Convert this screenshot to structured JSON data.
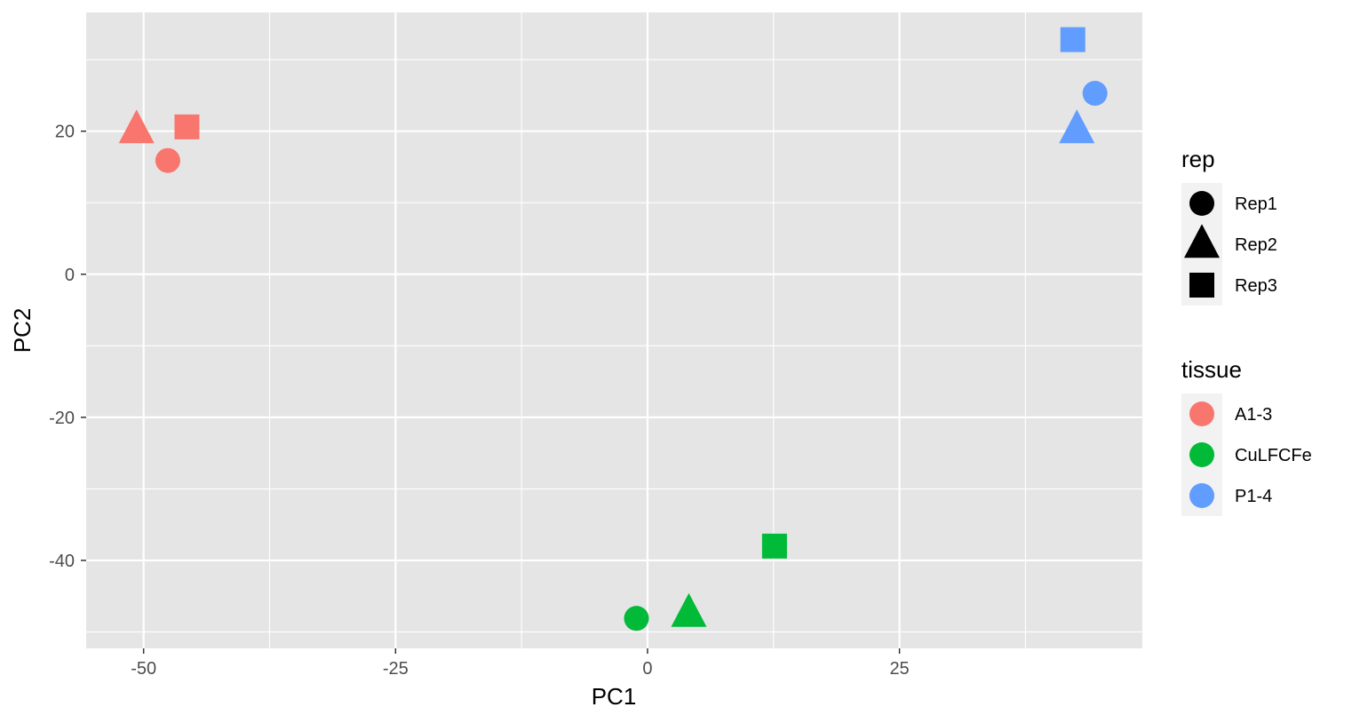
{
  "chart_data": {
    "type": "scatter",
    "xlabel": "PC1",
    "ylabel": "PC2",
    "xlim": [
      -55.7,
      49.1
    ],
    "ylim": [
      -52.3,
      36.6
    ],
    "x_ticks": [
      -50,
      -25,
      0,
      25
    ],
    "x_tick_labels": [
      "-50",
      "-25",
      "0",
      "25"
    ],
    "y_ticks": [
      -40,
      -20,
      0,
      20
    ],
    "y_tick_labels": [
      "-40",
      "-20",
      "0",
      "20"
    ],
    "background": "#e5e5e5",
    "grid": true,
    "points": [
      {
        "x": -47.6,
        "y": 15.9,
        "rep": "Rep1",
        "tissue": "A1-3"
      },
      {
        "x": -50.7,
        "y": 20.2,
        "rep": "Rep2",
        "tissue": "A1-3"
      },
      {
        "x": -45.7,
        "y": 20.6,
        "rep": "Rep3",
        "tissue": "A1-3"
      },
      {
        "x": -1.1,
        "y": -48.1,
        "rep": "Rep1",
        "tissue": "CuLFCFe"
      },
      {
        "x": 4.1,
        "y": -47.4,
        "rep": "Rep2",
        "tissue": "CuLFCFe"
      },
      {
        "x": 12.6,
        "y": -38.0,
        "rep": "Rep3",
        "tissue": "CuLFCFe"
      },
      {
        "x": 44.4,
        "y": 25.3,
        "rep": "Rep1",
        "tissue": "P1-4"
      },
      {
        "x": 42.6,
        "y": 20.2,
        "rep": "Rep2",
        "tissue": "P1-4"
      },
      {
        "x": 42.2,
        "y": 32.8,
        "rep": "Rep3",
        "tissue": "P1-4"
      }
    ],
    "legends": [
      {
        "title": "rep",
        "entries": [
          {
            "label": "Rep1",
            "shape": "circle",
            "color": "#000000"
          },
          {
            "label": "Rep2",
            "shape": "triangle",
            "color": "#000000"
          },
          {
            "label": "Rep3",
            "shape": "square",
            "color": "#000000"
          }
        ]
      },
      {
        "title": "tissue",
        "entries": [
          {
            "label": "A1-3",
            "shape": "circle",
            "color": "#F8766D"
          },
          {
            "label": "CuLFCFe",
            "shape": "circle",
            "color": "#00BA38"
          },
          {
            "label": "P1-4",
            "shape": "circle",
            "color": "#619CFF"
          }
        ]
      }
    ],
    "legend_position": "right"
  }
}
